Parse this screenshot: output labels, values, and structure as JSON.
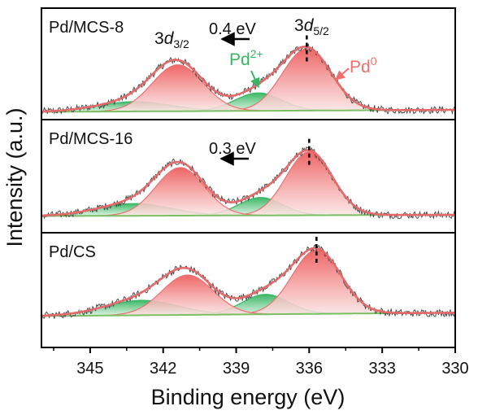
{
  "chart_data": {
    "type": "line",
    "xlabel": "Binding energy (eV)",
    "ylabel": "Intensity (a.u.)",
    "xlim": [
      347,
      330
    ],
    "x_reversed": true,
    "xticks": [
      345,
      342,
      339,
      336,
      333,
      330
    ],
    "grid": false,
    "colors": {
      "raw": "#4a4a4a",
      "fit": "#e36a6a",
      "pd0_fill": "#ef6a6a",
      "pd2_fill": "#3dbb6a",
      "pd2_label": "#36b563",
      "pd0_label": "#ef6e6e"
    },
    "panels": [
      {
        "label": "Pd/MCS-8",
        "peaks": [
          {
            "name": "Pd0 3d5/2",
            "center": 336.1,
            "height": 0.76,
            "width": 1.0,
            "color": "pink"
          },
          {
            "name": "Pd0 3d3/2",
            "center": 341.4,
            "height": 0.57,
            "width": 1.05,
            "color": "pink"
          },
          {
            "name": "Pd2+ 3d5/2",
            "center": 338.1,
            "height": 0.22,
            "width": 0.95,
            "color": "green"
          },
          {
            "name": "Pd2+ 3d3/2",
            "center": 343.2,
            "height": 0.12,
            "width": 1.5,
            "color": "green"
          }
        ],
        "annotations": {
          "shift": "0.4 eV",
          "d32": {
            "base": "3",
            "italic": "d",
            "sub": "3/2"
          },
          "d52": {
            "base": "3",
            "italic": "d",
            "sub": "5/2"
          },
          "pd2": {
            "base": "Pd",
            "sup": "2+"
          },
          "pd0": {
            "base": "Pd",
            "sup": "0"
          }
        }
      },
      {
        "label": "Pd/MCS-16",
        "peaks": [
          {
            "name": "Pd0 3d5/2",
            "center": 336.0,
            "height": 0.78,
            "width": 0.95,
            "color": "pink"
          },
          {
            "name": "Pd0 3d3/2",
            "center": 341.3,
            "height": 0.59,
            "width": 1.0,
            "color": "pink"
          },
          {
            "name": "Pd2+ 3d5/2",
            "center": 338.0,
            "height": 0.22,
            "width": 0.9,
            "color": "green"
          },
          {
            "name": "Pd2+ 3d3/2",
            "center": 343.2,
            "height": 0.15,
            "width": 1.5,
            "color": "green"
          }
        ],
        "annotations": {
          "shift": "0.3 eV"
        }
      },
      {
        "label": "Pd/CS",
        "peaks": [
          {
            "name": "Pd0 3d5/2",
            "center": 335.7,
            "height": 0.77,
            "width": 1.0,
            "color": "pink"
          },
          {
            "name": "Pd0 3d3/2",
            "center": 341.0,
            "height": 0.48,
            "width": 1.05,
            "color": "pink"
          },
          {
            "name": "Pd2+ 3d5/2",
            "center": 337.8,
            "height": 0.24,
            "width": 0.95,
            "color": "green"
          },
          {
            "name": "Pd2+ 3d3/2",
            "center": 342.9,
            "height": 0.18,
            "width": 1.5,
            "color": "green"
          }
        ],
        "annotations": {}
      }
    ]
  }
}
